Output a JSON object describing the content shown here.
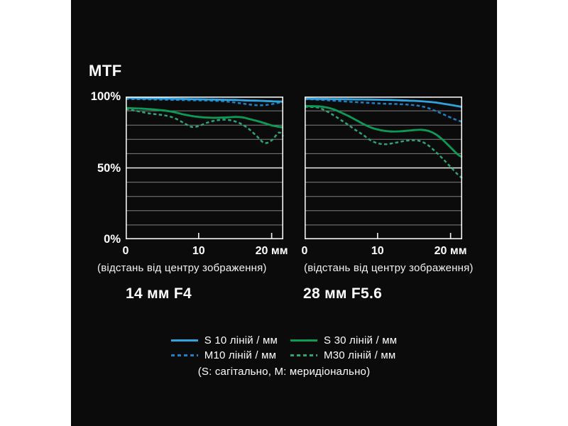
{
  "title": "MTF",
  "colors": {
    "page_background": "#ffffff",
    "panel_background": "#0b0b0b",
    "text": "#ffffff",
    "grid": "#7f7f7f",
    "grid_50": "#ebebeb",
    "plot_border": "#f4f4f4",
    "blue_solid": "#2fa3de",
    "blue_dashed": "#1d7fc4",
    "green_solid": "#0c9b57",
    "green_dashed": "#2da474"
  },
  "y_axis": {
    "labels": [
      "100%",
      "50%",
      "0%"
    ]
  },
  "x_axis": {
    "tick_labels": [
      "0",
      "10",
      "20 мм"
    ]
  },
  "charts": [
    {
      "title": "14 мм F4",
      "caption": "(відстань від центру зображення)"
    },
    {
      "title": "28 мм F5.6",
      "caption": "(відстань від центру зображення)"
    }
  ],
  "legend": {
    "items": [
      {
        "key": "s10",
        "label": "S 10 ліній / мм",
        "style": "solid",
        "color": "#2fa3de"
      },
      {
        "key": "s30",
        "label": "S 30 ліній / мм",
        "style": "solid",
        "color": "#0c9b57"
      },
      {
        "key": "m10",
        "label": "M10 ліній / мм",
        "style": "dashed",
        "color": "#1d7fc4"
      },
      {
        "key": "m30",
        "label": "M30 ліній / мм",
        "style": "dashed",
        "color": "#2da474"
      }
    ],
    "note": "(S: сагітально, M: меридіонально)"
  },
  "chart_data": [
    {
      "type": "line",
      "title": "14 мм F4",
      "xlabel": "(відстань від центру зображення)",
      "ylabel": "MTF",
      "xlim": [
        0,
        21.6
      ],
      "ylim": [
        0,
        100
      ],
      "x_ticks": [
        0,
        10,
        20
      ],
      "y_tick_labels": [
        "0%",
        "50%",
        "100%"
      ],
      "grid_step_percent": 10,
      "highlight_gridline_percent": 50,
      "x": [
        0,
        1,
        2,
        3,
        4,
        5,
        6,
        7,
        8,
        9,
        10,
        11,
        12,
        13,
        14,
        15,
        16,
        17,
        18,
        19,
        20,
        21,
        21.6
      ],
      "series": [
        {
          "key": "s10",
          "name": "S 10 ліній / мм",
          "style": "solid",
          "color": "#2fa3de",
          "values": [
            99,
            98.9,
            98.8,
            98.7,
            98.7,
            98.6,
            98.5,
            98.4,
            98.3,
            98.2,
            98.1,
            98,
            97.9,
            97.8,
            97.7,
            97.6,
            97.4,
            97.2,
            97.1,
            96.9,
            96.7,
            96.5,
            96.4
          ]
        },
        {
          "key": "m10",
          "name": "M10 ліній / мм",
          "style": "dashed",
          "color": "#1d7fc4",
          "values": [
            98.3,
            98.2,
            98.1,
            98,
            97.9,
            97.8,
            97.7,
            97.6,
            97.5,
            97.4,
            97.3,
            97.2,
            97,
            96.8,
            96.4,
            95.8,
            95.1,
            94.4,
            93.9,
            94,
            94.7,
            95.7,
            96.2
          ]
        },
        {
          "key": "s30",
          "name": "S 30 ліній / мм",
          "style": "solid",
          "color": "#0c9b57",
          "values": [
            92,
            91.8,
            91.6,
            91.3,
            90.9,
            90.4,
            89.7,
            88.7,
            87.4,
            86.4,
            85.7,
            85.3,
            85.1,
            85.2,
            85.4,
            85.7,
            85.4,
            84.2,
            82.9,
            81.4,
            79.8,
            78.8,
            78.4
          ]
        },
        {
          "key": "m30",
          "name": "M30 ліній / мм",
          "style": "dashed",
          "color": "#2da474",
          "values": [
            91.4,
            90.4,
            89.4,
            88.4,
            87.7,
            87.1,
            86.1,
            84.2,
            81.4,
            78.8,
            79.3,
            81.4,
            82.9,
            83.7,
            83.7,
            82.6,
            80.4,
            76.8,
            72.1,
            67.5,
            69.3,
            74.8,
            72.1
          ]
        }
      ]
    },
    {
      "type": "line",
      "title": "28 мм F5.6",
      "xlabel": "(відстань від центру зображення)",
      "ylabel": "MTF",
      "xlim": [
        0,
        21.6
      ],
      "ylim": [
        0,
        100
      ],
      "x_ticks": [
        0,
        10,
        20
      ],
      "y_tick_labels": [
        "0%",
        "50%",
        "100%"
      ],
      "grid_step_percent": 10,
      "highlight_gridline_percent": 50,
      "x": [
        0,
        1,
        2,
        3,
        4,
        5,
        6,
        7,
        8,
        9,
        10,
        11,
        12,
        13,
        14,
        15,
        16,
        17,
        18,
        19,
        20,
        21,
        21.6
      ],
      "series": [
        {
          "key": "s10",
          "name": "S 10 ліній / мм",
          "style": "solid",
          "color": "#2fa3de",
          "values": [
            98.4,
            98.4,
            98.3,
            98.3,
            98.2,
            98.2,
            98.1,
            98,
            98,
            97.9,
            97.8,
            97.7,
            97.6,
            97.4,
            97.2,
            97,
            96.7,
            96.3,
            95.8,
            95,
            94.2,
            93.3,
            92.7
          ]
        },
        {
          "key": "m10",
          "name": "M10 ліній / мм",
          "style": "dashed",
          "color": "#1d7fc4",
          "values": [
            98.2,
            98,
            97.7,
            97.4,
            97.1,
            96.8,
            96.4,
            96.1,
            95.8,
            95.5,
            95.2,
            95,
            94.9,
            94.7,
            94.4,
            94,
            93.2,
            91.8,
            89.8,
            87.6,
            85.3,
            83.3,
            82.4
          ]
        },
        {
          "key": "s30",
          "name": "S 30 ліній / мм",
          "style": "solid",
          "color": "#0c9b57",
          "values": [
            93.4,
            93.3,
            93.1,
            92.4,
            91,
            88.8,
            86.4,
            83.7,
            80.9,
            78.5,
            76.9,
            75.9,
            75.5,
            75.6,
            76,
            76.5,
            76.7,
            75.9,
            73.5,
            69.4,
            64.4,
            59.4,
            57.5
          ]
        },
        {
          "key": "m30",
          "name": "M30 ліній / мм",
          "style": "dashed",
          "color": "#2da474",
          "values": [
            92.8,
            92.7,
            92.1,
            89.8,
            86.8,
            83.5,
            80.1,
            76.5,
            73.2,
            69.5,
            67.3,
            66.6,
            67.2,
            68.2,
            69.1,
            69.4,
            68.5,
            65.6,
            61.1,
            56.1,
            50.7,
            45.4,
            42.8
          ]
        }
      ]
    }
  ]
}
